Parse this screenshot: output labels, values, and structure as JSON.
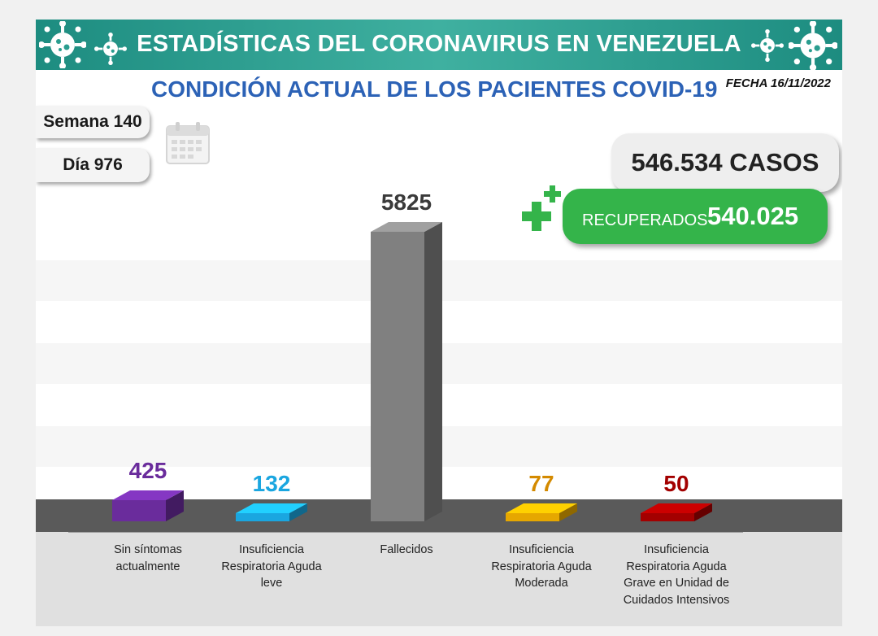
{
  "header": {
    "title": "ESTADÍSTICAS DEL CORONAVIRUS EN VENEZUELA",
    "subtitle": "CONDICIÓN ACTUAL DE LOS PACIENTES COVID-19",
    "date": "FECHA 16/11/2022"
  },
  "info": {
    "week": "Semana 140",
    "day": "Día 976"
  },
  "summary": {
    "cases_label": "546.534 CASOS",
    "recovered_label": "RECUPERADOS",
    "recovered_value": "540.025"
  },
  "icons": {
    "banner_left": "virus-icon",
    "banner_right": "virus-icon",
    "calendar": "calendar-icon",
    "plus": "medical-plus-icon"
  },
  "colors": {
    "banner": "#2a9d8f",
    "title_blue": "#2c62b6",
    "recovered_green": "#34b44a"
  },
  "chart_data": {
    "type": "bar",
    "title": "CONDICIÓN ACTUAL DE LOS PACIENTES COVID-19",
    "categories": [
      [
        "Sin síntomas",
        "actualmente"
      ],
      [
        "Insuficiencia",
        "Respiratoria Aguda",
        "leve"
      ],
      [
        "Fallecidos"
      ],
      [
        "Insuficiencia",
        "Respiratoria Aguda",
        "Moderada"
      ],
      [
        "Insuficiencia",
        "Respiratoria Aguda",
        "Grave en Unidad de",
        "Cuidados Intensivos"
      ]
    ],
    "values": [
      425,
      132,
      5825,
      77,
      50
    ],
    "value_labels": [
      "425",
      "132",
      "5825",
      "77",
      "50"
    ],
    "colors": [
      "#6a2c9c",
      "#1aa6e0",
      "#808080",
      "#e6a700",
      "#a30000"
    ],
    "label_colors": [
      "#6a2c9c",
      "#1aa6e0",
      "#3a3a3a",
      "#d48a00",
      "#a30000"
    ],
    "xlabel": "",
    "ylabel": "",
    "ylim": [
      0,
      5825
    ],
    "grid": false,
    "legend": "none"
  }
}
